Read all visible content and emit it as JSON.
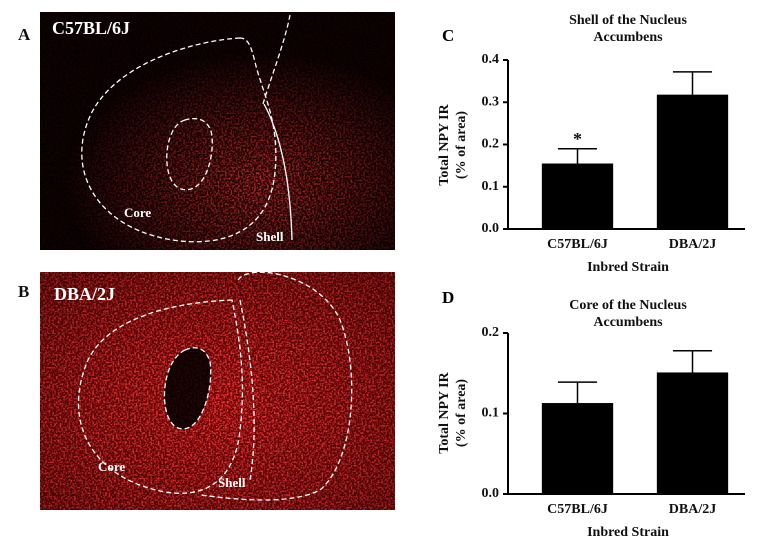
{
  "figure": {
    "panels": [
      {
        "letter": "A",
        "strain": "C57BL/6J",
        "core": "Core",
        "shell": "Shell"
      },
      {
        "letter": "B",
        "strain": "DBA/2J",
        "core": "Core",
        "shell": "Shell"
      }
    ]
  },
  "chart_data": [
    {
      "type": "bar",
      "label": "C",
      "title": "Shell of the Nucleus Accumbens",
      "x_label": "Inbred Strain",
      "y_label": "Total NPY IR (% of area)",
      "categories": [
        "C57BL/6J",
        "DBA/2J"
      ],
      "values": [
        0.155,
        0.318
      ],
      "errors": [
        0.035,
        0.054
      ],
      "color": "#000000",
      "ylim": [
        0,
        0.4
      ],
      "yticks": [
        {
          "value": 0,
          "label": "0.0"
        },
        0.1,
        0.2,
        0.3,
        0.4
      ],
      "annotations": [
        {
          "text": "*",
          "x": "C57BL/6J"
        }
      ]
    },
    {
      "type": "bar",
      "label": "D",
      "title": "Core of the Nucleus Accumbens",
      "x_label": "Inbred Strain",
      "y_label": "Total NPY IR (% of area)",
      "categories": [
        "C57BL/6J",
        "DBA/2J"
      ],
      "values": [
        0.113,
        0.151
      ],
      "errors": [
        0.026,
        0.027
      ],
      "color": "#000000",
      "ylim": [
        0,
        0.2
      ],
      "yticks": [
        {
          "value": 0,
          "label": "0.0"
        },
        0.1,
        0.2
      ],
      "annotations": []
    }
  ]
}
